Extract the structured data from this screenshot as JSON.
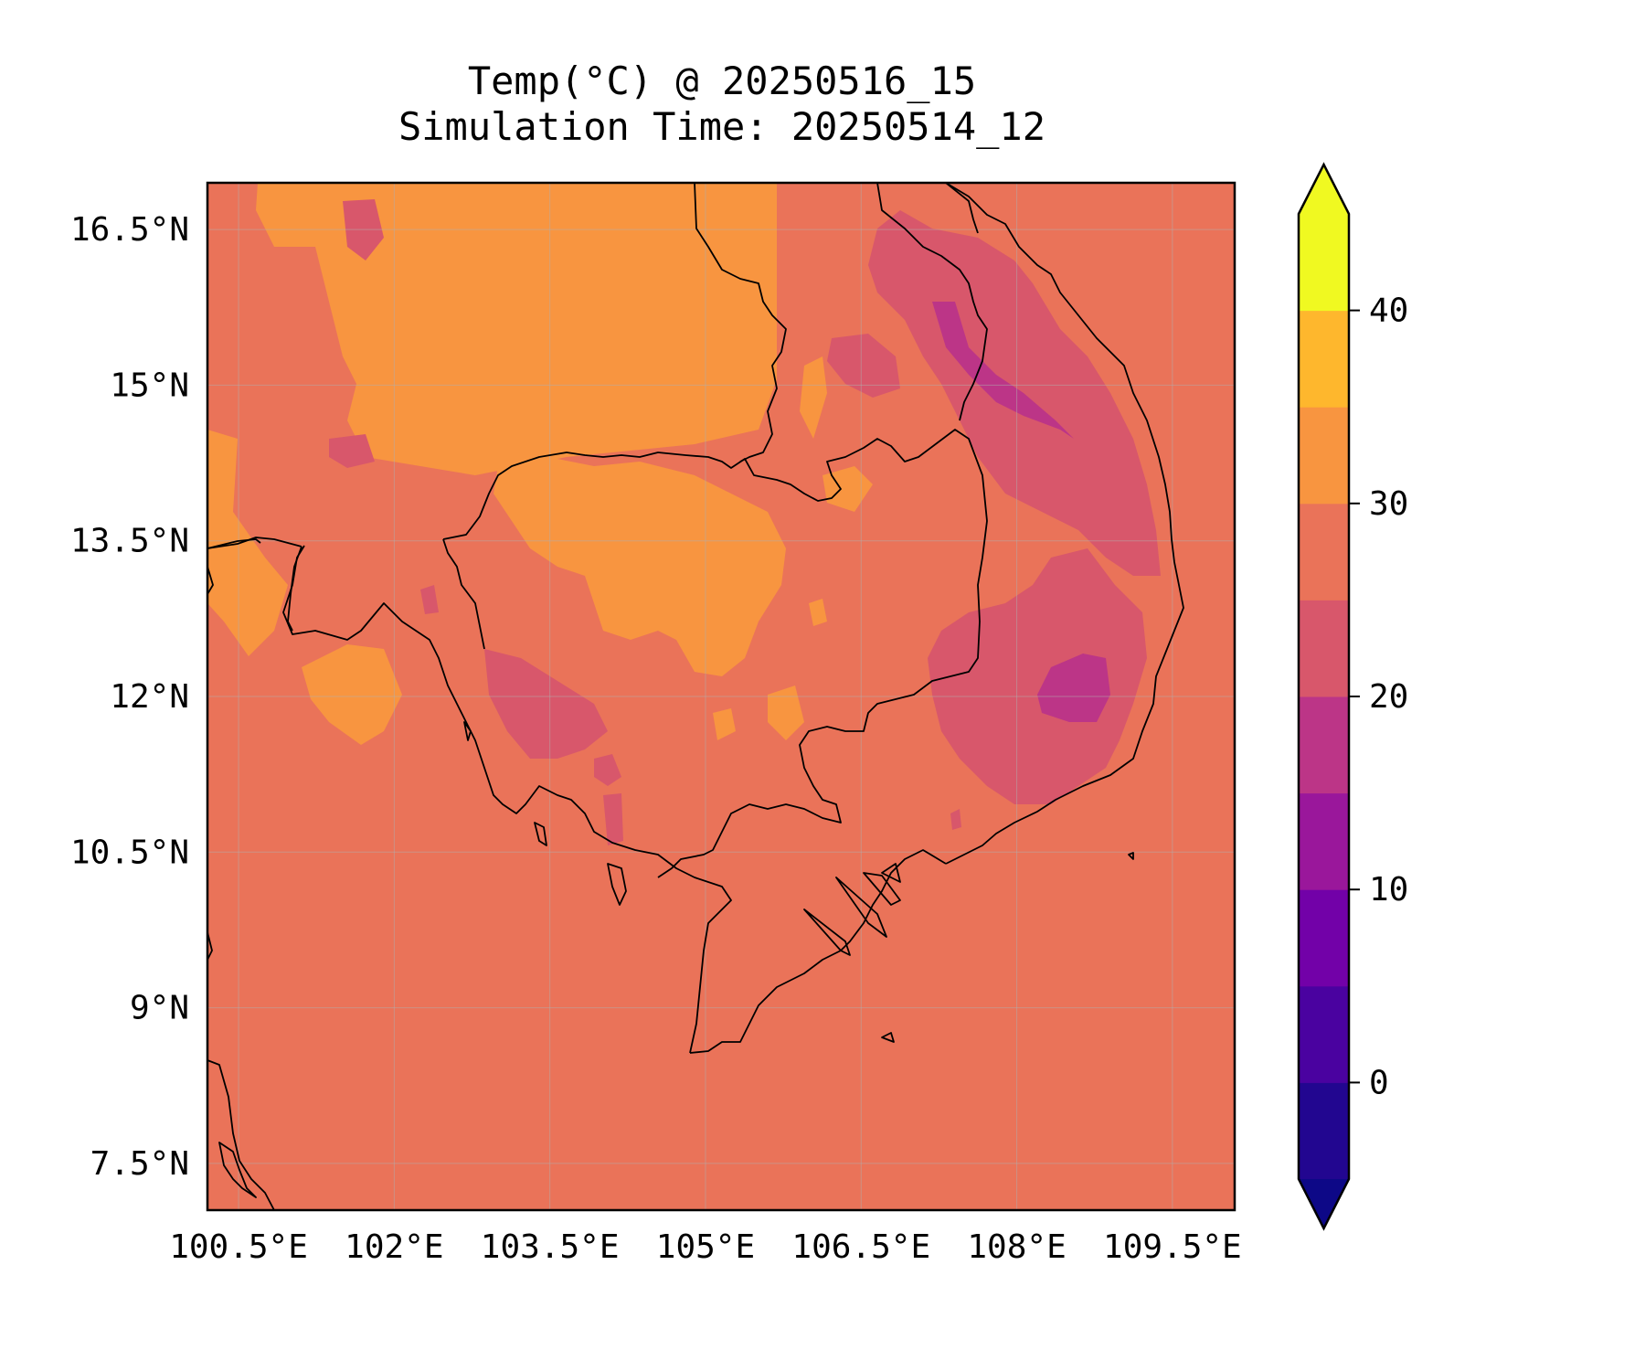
{
  "title": {
    "line1": "Temp(°C) @ 20250516_15",
    "line2": "Simulation Time: 20250514_12"
  },
  "map": {
    "variable": "Temp(°C)",
    "lon_range": [
      100.2,
      110.1
    ],
    "lat_range": [
      7.05,
      16.95
    ],
    "lon_ticks": [
      "100.5°E",
      "102°E",
      "103.5°E",
      "105°E",
      "106.5°E",
      "108°E",
      "109.5°E"
    ],
    "lat_ticks": [
      "16.5°N",
      "15°N",
      "13.5°N",
      "12°N",
      "10.5°N",
      "9°N",
      "7.5°N"
    ],
    "background_fill_color": "#ea7359",
    "grid": true
  },
  "colorbar": {
    "ticks": [
      "0",
      "10",
      "20",
      "30",
      "40"
    ],
    "min": -5,
    "max": 45,
    "step": 5,
    "extend": "both",
    "colors": [
      "#220690",
      "#4a02a0",
      "#7201a8",
      "#9a179b",
      "#bc3587",
      "#d8576b",
      "#ea7359",
      "#f89540",
      "#feb72d",
      "#f0f921"
    ],
    "under_color": "#0d0887",
    "over_color": "#f0f921"
  }
}
